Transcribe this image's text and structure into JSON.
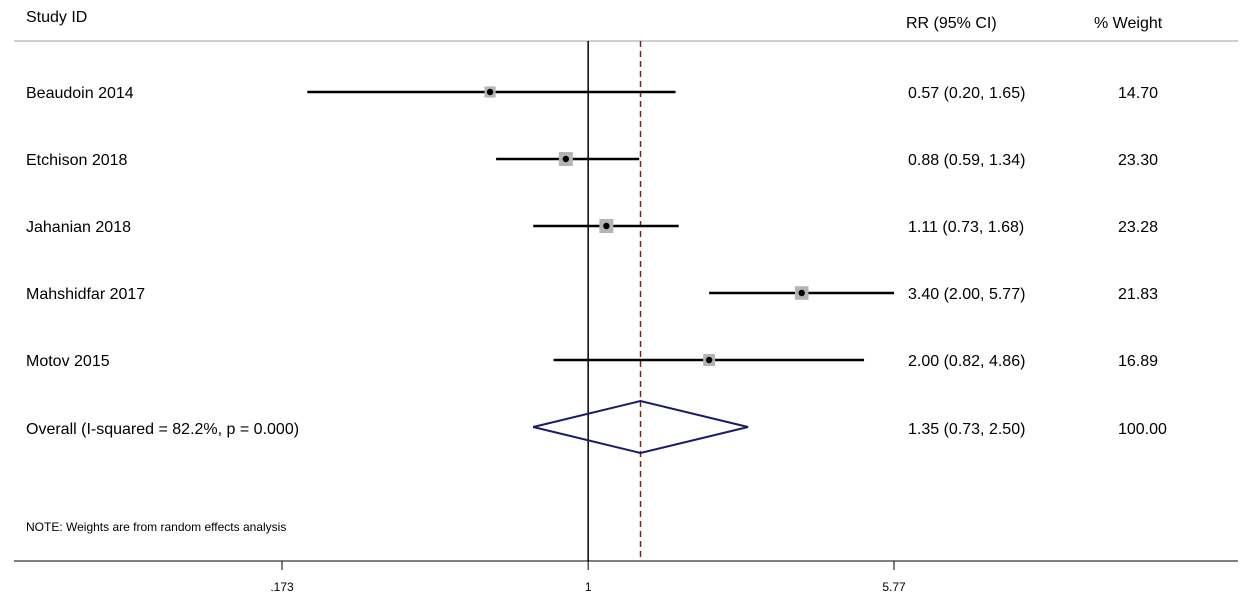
{
  "chart_data": {
    "type": "forest",
    "header": {
      "study_col": "Study ID",
      "effect_col": "RR (95% CI)",
      "weight_col": "% Weight"
    },
    "scale": "log",
    "reference_line": 1,
    "overall_line": 1.35,
    "x_ticks": [
      {
        "value": 0.173,
        "label": ".173"
      },
      {
        "value": 1,
        "label": "1"
      },
      {
        "value": 5.77,
        "label": "5.77"
      }
    ],
    "studies": [
      {
        "label": "Beaudoin 2014",
        "rr": 0.57,
        "lo": 0.2,
        "hi": 1.65,
        "ci_text": "0.57 (0.20, 1.65)",
        "weight": 14.7,
        "weight_text": "14.70"
      },
      {
        "label": "Etchison 2018",
        "rr": 0.88,
        "lo": 0.59,
        "hi": 1.34,
        "ci_text": "0.88 (0.59, 1.34)",
        "weight": 23.3,
        "weight_text": "23.30"
      },
      {
        "label": "Jahanian 2018",
        "rr": 1.11,
        "lo": 0.73,
        "hi": 1.68,
        "ci_text": "1.11 (0.73, 1.68)",
        "weight": 23.28,
        "weight_text": "23.28"
      },
      {
        "label": "Mahshidfar 2017",
        "rr": 3.4,
        "lo": 2.0,
        "hi": 5.77,
        "ci_text": "3.40 (2.00, 5.77)",
        "weight": 21.83,
        "weight_text": "21.83"
      },
      {
        "label": "Motov 2015",
        "rr": 2.0,
        "lo": 0.82,
        "hi": 4.86,
        "ci_text": "2.00 (0.82, 4.86)",
        "weight": 16.89,
        "weight_text": "16.89"
      }
    ],
    "overall": {
      "label": "Overall  (I-squared = 82.2%, p = 0.000)",
      "rr": 1.35,
      "lo": 0.73,
      "hi": 2.5,
      "ci_text": "1.35 (0.73, 2.50)",
      "weight_text": "100.00"
    },
    "note": "NOTE: Weights are from random effects analysis",
    "colors": {
      "ci_line": "#000000",
      "weight_box": "#b4b4b4",
      "point": "#000000",
      "diamond": "#1a1a6e",
      "overall_line": "#8b1a1a",
      "header_rule": "#bdbdbd"
    }
  }
}
